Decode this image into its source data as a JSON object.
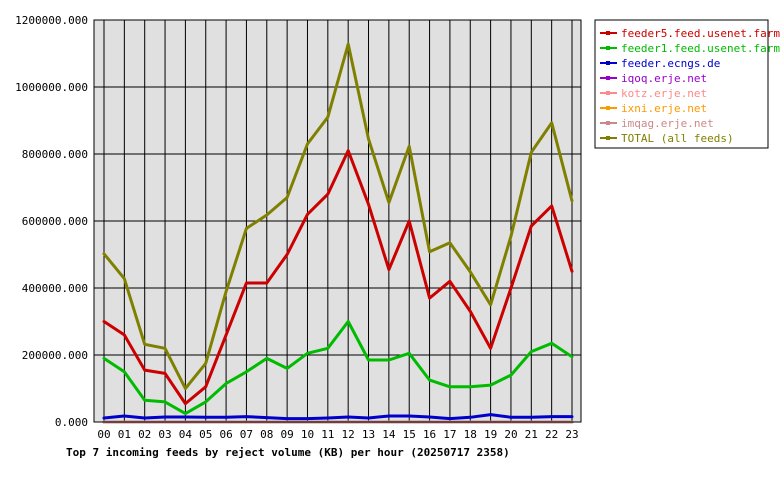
{
  "chart_data": {
    "type": "line",
    "title": "Top 7 incoming feeds by reject volume (KB) per hour (20250717 2358)",
    "xlabel": "",
    "ylabel": "",
    "categories": [
      "00",
      "01",
      "02",
      "03",
      "04",
      "05",
      "06",
      "07",
      "08",
      "09",
      "10",
      "11",
      "12",
      "13",
      "14",
      "15",
      "16",
      "17",
      "18",
      "19",
      "20",
      "21",
      "22",
      "23"
    ],
    "ylim": [
      0,
      1200000
    ],
    "yticks": [
      0,
      200000,
      400000,
      600000,
      800000,
      1000000,
      1200000
    ],
    "ytick_labels": [
      "0.000",
      "200000.000",
      "400000.000",
      "600000.000",
      "800000.000",
      "1000000.000",
      "1200000.000"
    ],
    "grid": true,
    "legend_position": "right",
    "series": [
      {
        "name": "feeder5.feed.usenet.farm",
        "color": "#cc0000",
        "values": [
          300000,
          260000,
          155000,
          145000,
          55000,
          105000,
          260000,
          415000,
          415000,
          500000,
          620000,
          680000,
          810000,
          650000,
          455000,
          600000,
          370000,
          420000,
          330000,
          220000,
          400000,
          585000,
          645000,
          450000
        ]
      },
      {
        "name": "feeder1.feed.usenet.farm",
        "color": "#00bb00",
        "values": [
          190000,
          150000,
          65000,
          60000,
          25000,
          60000,
          115000,
          150000,
          190000,
          160000,
          205000,
          220000,
          300000,
          185000,
          185000,
          205000,
          125000,
          105000,
          105000,
          110000,
          140000,
          210000,
          235000,
          195000
        ]
      },
      {
        "name": "feeder.ecngs.de",
        "color": "#0000cc",
        "values": [
          12000,
          18000,
          12000,
          15000,
          15000,
          14000,
          14000,
          16000,
          13000,
          10000,
          10000,
          12000,
          15000,
          12000,
          18000,
          18000,
          15000,
          10000,
          14000,
          22000,
          14000,
          14000,
          16000,
          16000
        ]
      },
      {
        "name": "iqoq.erje.net",
        "color": "#9900cc",
        "values": [
          0,
          0,
          0,
          0,
          0,
          0,
          0,
          0,
          0,
          0,
          0,
          0,
          0,
          0,
          0,
          0,
          0,
          0,
          0,
          0,
          0,
          0,
          0,
          0
        ]
      },
      {
        "name": "kotz.erje.net",
        "color": "#ff8888",
        "values": [
          0,
          0,
          0,
          0,
          0,
          0,
          0,
          0,
          0,
          0,
          0,
          0,
          0,
          0,
          0,
          0,
          0,
          0,
          0,
          0,
          0,
          0,
          0,
          0
        ]
      },
      {
        "name": "ixni.erje.net",
        "color": "#ff9900",
        "values": [
          0,
          0,
          0,
          0,
          0,
          0,
          0,
          0,
          0,
          0,
          0,
          0,
          0,
          0,
          0,
          0,
          0,
          0,
          0,
          0,
          0,
          0,
          0,
          0
        ]
      },
      {
        "name": "imqag.erje.net",
        "color": "#cc8888",
        "values": [
          0,
          0,
          0,
          0,
          0,
          0,
          0,
          0,
          0,
          0,
          0,
          0,
          0,
          0,
          0,
          0,
          0,
          0,
          0,
          0,
          0,
          0,
          0,
          0
        ]
      },
      {
        "name": "TOTAL (all feeds)",
        "color": "#808000",
        "values": [
          502000,
          428000,
          232000,
          220000,
          100000,
          175000,
          390000,
          578000,
          618000,
          670000,
          830000,
          910000,
          1128000,
          845000,
          655000,
          823000,
          508000,
          535000,
          448000,
          350000,
          555000,
          805000,
          893000,
          660000
        ]
      }
    ]
  }
}
